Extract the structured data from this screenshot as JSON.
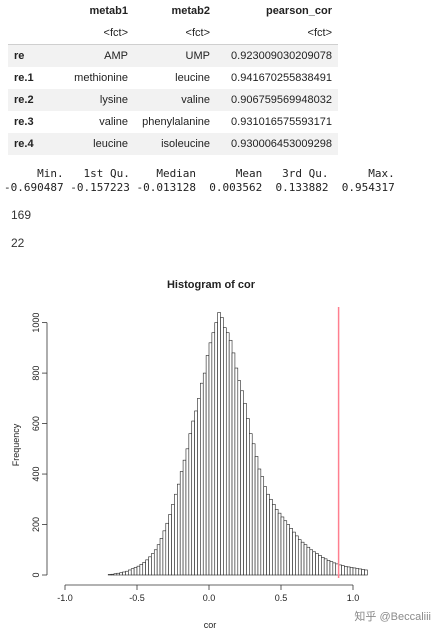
{
  "table": {
    "columns": [
      "metab1",
      "metab2",
      "pearson_cor"
    ],
    "types": [
      "<fct>",
      "<fct>",
      "<fct>"
    ],
    "rows": [
      {
        "name": "re",
        "metab1": "AMP",
        "metab2": "UMP",
        "pearson_cor": "0.923009030209078"
      },
      {
        "name": "re.1",
        "metab1": "methionine",
        "metab2": "leucine",
        "pearson_cor": "0.941670255838491"
      },
      {
        "name": "re.2",
        "metab1": "lysine",
        "metab2": "valine",
        "pearson_cor": "0.906759569948032"
      },
      {
        "name": "re.3",
        "metab1": "valine",
        "metab2": "phenylalanine",
        "pearson_cor": "0.931016575593171"
      },
      {
        "name": "re.4",
        "metab1": "leucine",
        "metab2": "isoleucine",
        "pearson_cor": "0.930006453009298"
      }
    ]
  },
  "summary": {
    "header": "     Min.   1st Qu.    Median      Mean   3rd Qu.      Max. ",
    "values": "-0.690487 -0.157223 -0.013128  0.003562  0.133882  0.954317 "
  },
  "outputs": [
    "169",
    "22"
  ],
  "watermark": "知乎 @Beccaliii",
  "chart_data": {
    "type": "bar",
    "title": "Histogram of cor",
    "xlabel": "cor",
    "ylabel": "Frequency",
    "xlim": [
      -1.0,
      1.0
    ],
    "ylim": [
      0,
      1050
    ],
    "x_ticks": [
      "-1.0",
      "-0.5",
      "0.0",
      "0.5",
      "1.0"
    ],
    "y_ticks": [
      "0",
      "200",
      "400",
      "600",
      "800",
      "1000"
    ],
    "bin_width": 0.02,
    "bin_start": -0.7,
    "counts": [
      2,
      3,
      5,
      7,
      9,
      12,
      15,
      20,
      25,
      30,
      35,
      42,
      50,
      60,
      72,
      85,
      100,
      120,
      145,
      175,
      205,
      240,
      280,
      320,
      360,
      410,
      455,
      500,
      560,
      610,
      650,
      700,
      760,
      800,
      870,
      920,
      960,
      1000,
      1040,
      1020,
      980,
      960,
      930,
      880,
      820,
      770,
      730,
      680,
      620,
      560,
      520,
      470,
      420,
      390,
      350,
      320,
      300,
      280,
      260,
      245,
      230,
      215,
      200,
      185,
      170,
      155,
      140,
      130,
      120,
      110,
      100,
      92,
      85,
      78,
      70,
      64,
      58,
      53,
      48,
      44,
      40,
      37,
      34,
      32,
      30,
      28,
      26,
      24,
      22,
      20
    ],
    "vline": {
      "x": 0.9,
      "color": "#ff7f8f"
    },
    "bar_fill": "#ffffff",
    "bar_stroke": "#222222"
  }
}
